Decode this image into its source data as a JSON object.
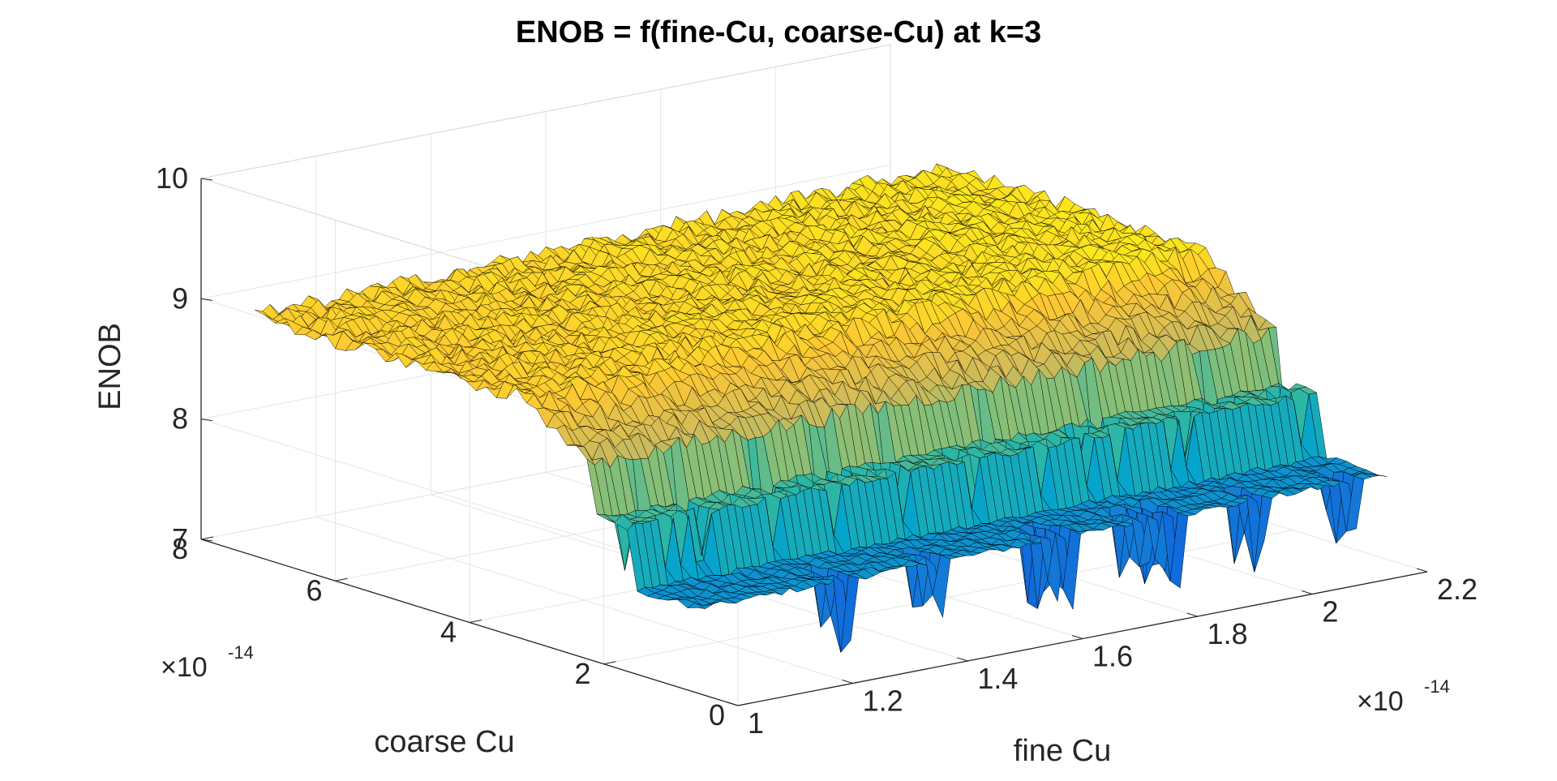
{
  "chart_data": {
    "type": "surface",
    "title": "ENOB = f(fine-Cu, coarse-Cu) at k=3",
    "xlabel": "fine Cu",
    "ylabel": "coarse Cu",
    "zlabel": "ENOB",
    "x_multiplier": {
      "base": "×10",
      "exponent": "-14"
    },
    "y_multiplier": {
      "base": "×10",
      "exponent": "-14"
    },
    "xlim": [
      1.0,
      2.2
    ],
    "ylim": [
      0,
      8
    ],
    "zlim": [
      7,
      10
    ],
    "x_ticks": [
      1,
      1.2,
      1.4,
      1.6,
      1.8,
      2,
      2.2
    ],
    "x_tick_labels": [
      "1",
      "1.2",
      "1.4",
      "1.6",
      "1.8",
      "2",
      "2.2"
    ],
    "y_ticks": [
      0,
      2,
      4,
      6,
      8
    ],
    "y_tick_labels": [
      "0",
      "2",
      "4",
      "6",
      "8"
    ],
    "z_ticks": [
      7,
      8,
      9,
      10
    ],
    "z_tick_labels": [
      "7",
      "8",
      "9",
      "10"
    ],
    "grid": true,
    "colormap": "parula",
    "colormap_stops": [
      "#352A87",
      "#0F5CDD",
      "#1481D6",
      "#06A4CA",
      "#2EB7A4",
      "#87BF77",
      "#D1BB59",
      "#FEC832",
      "#F9FB0E"
    ],
    "surface": {
      "x_range": [
        1.0,
        2.2
      ],
      "y_range": [
        0.6,
        7.2
      ],
      "description_levels": {
        "low_coarse_band_enob": 7.7,
        "mid_coarse_band_enob": 8.2,
        "transition_enob": 8.6,
        "high_coarse_plateau_enob": 9.0,
        "spike_min_enob": 7.0
      },
      "band_boundaries_coarse": [
        1.6,
        2.2,
        3.2
      ],
      "spike_enob_floor": 7.05
    }
  }
}
